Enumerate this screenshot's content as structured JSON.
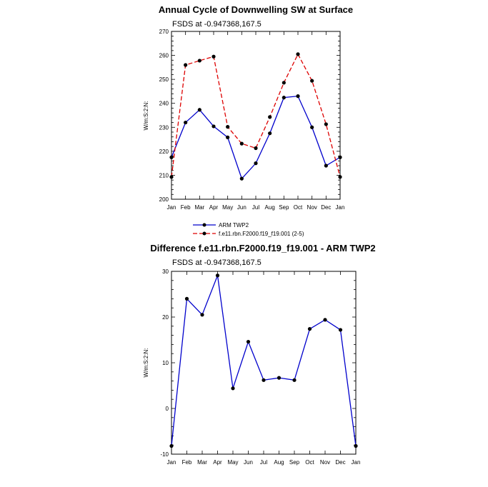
{
  "chart_data": [
    {
      "type": "line",
      "title": "Annual Cycle of Downwelling SW at Surface",
      "subtitle": "FSDS at -0.947368,167.5",
      "xlabel": "",
      "ylabel": "W/m:S:2:N:",
      "categories": [
        "Jan",
        "Feb",
        "Mar",
        "Apr",
        "May",
        "Jun",
        "Jul",
        "Aug",
        "Sep",
        "Oct",
        "Nov",
        "Dec",
        "Jan"
      ],
      "ylim": [
        200,
        270
      ],
      "yticks": [
        "200",
        "210",
        "220",
        "230",
        "240",
        "250",
        "260",
        "270"
      ],
      "series": [
        {
          "name": "ARM TWP2",
          "color": "#0000cc",
          "dash": "solid",
          "values": [
            217.5,
            232.0,
            237.3,
            230.4,
            225.8,
            208.6,
            215.0,
            227.5,
            242.4,
            243.0,
            230.0,
            214.0,
            217.5
          ]
        },
        {
          "name": "f.e11.rbn.F2000.f19_f19.001 (2-5)",
          "color": "#dd0000",
          "dash": "dashed",
          "values": [
            209.3,
            256.0,
            257.8,
            259.5,
            230.2,
            223.2,
            221.3,
            234.3,
            248.6,
            260.5,
            249.4,
            231.3,
            209.3
          ]
        }
      ],
      "legend": "bottom"
    },
    {
      "type": "line",
      "title": "Difference f.e11.rbn.F2000.f19_f19.001 - ARM TWP2",
      "subtitle": "FSDS at -0.947368,167.5",
      "xlabel": "",
      "ylabel": "W/m:S:2:N:",
      "categories": [
        "Jan",
        "Feb",
        "Mar",
        "Apr",
        "May",
        "Jun",
        "Jul",
        "Aug",
        "Sep",
        "Oct",
        "Nov",
        "Dec",
        "Jan"
      ],
      "ylim": [
        -10,
        30
      ],
      "yticks": [
        "-10",
        "0",
        "10",
        "20",
        "30"
      ],
      "series": [
        {
          "name": "",
          "color": "#0000cc",
          "dash": "solid",
          "values": [
            -8.2,
            24.0,
            20.5,
            29.1,
            4.4,
            14.6,
            6.2,
            6.7,
            6.2,
            17.4,
            19.4,
            17.2,
            -8.2
          ]
        }
      ]
    }
  ]
}
